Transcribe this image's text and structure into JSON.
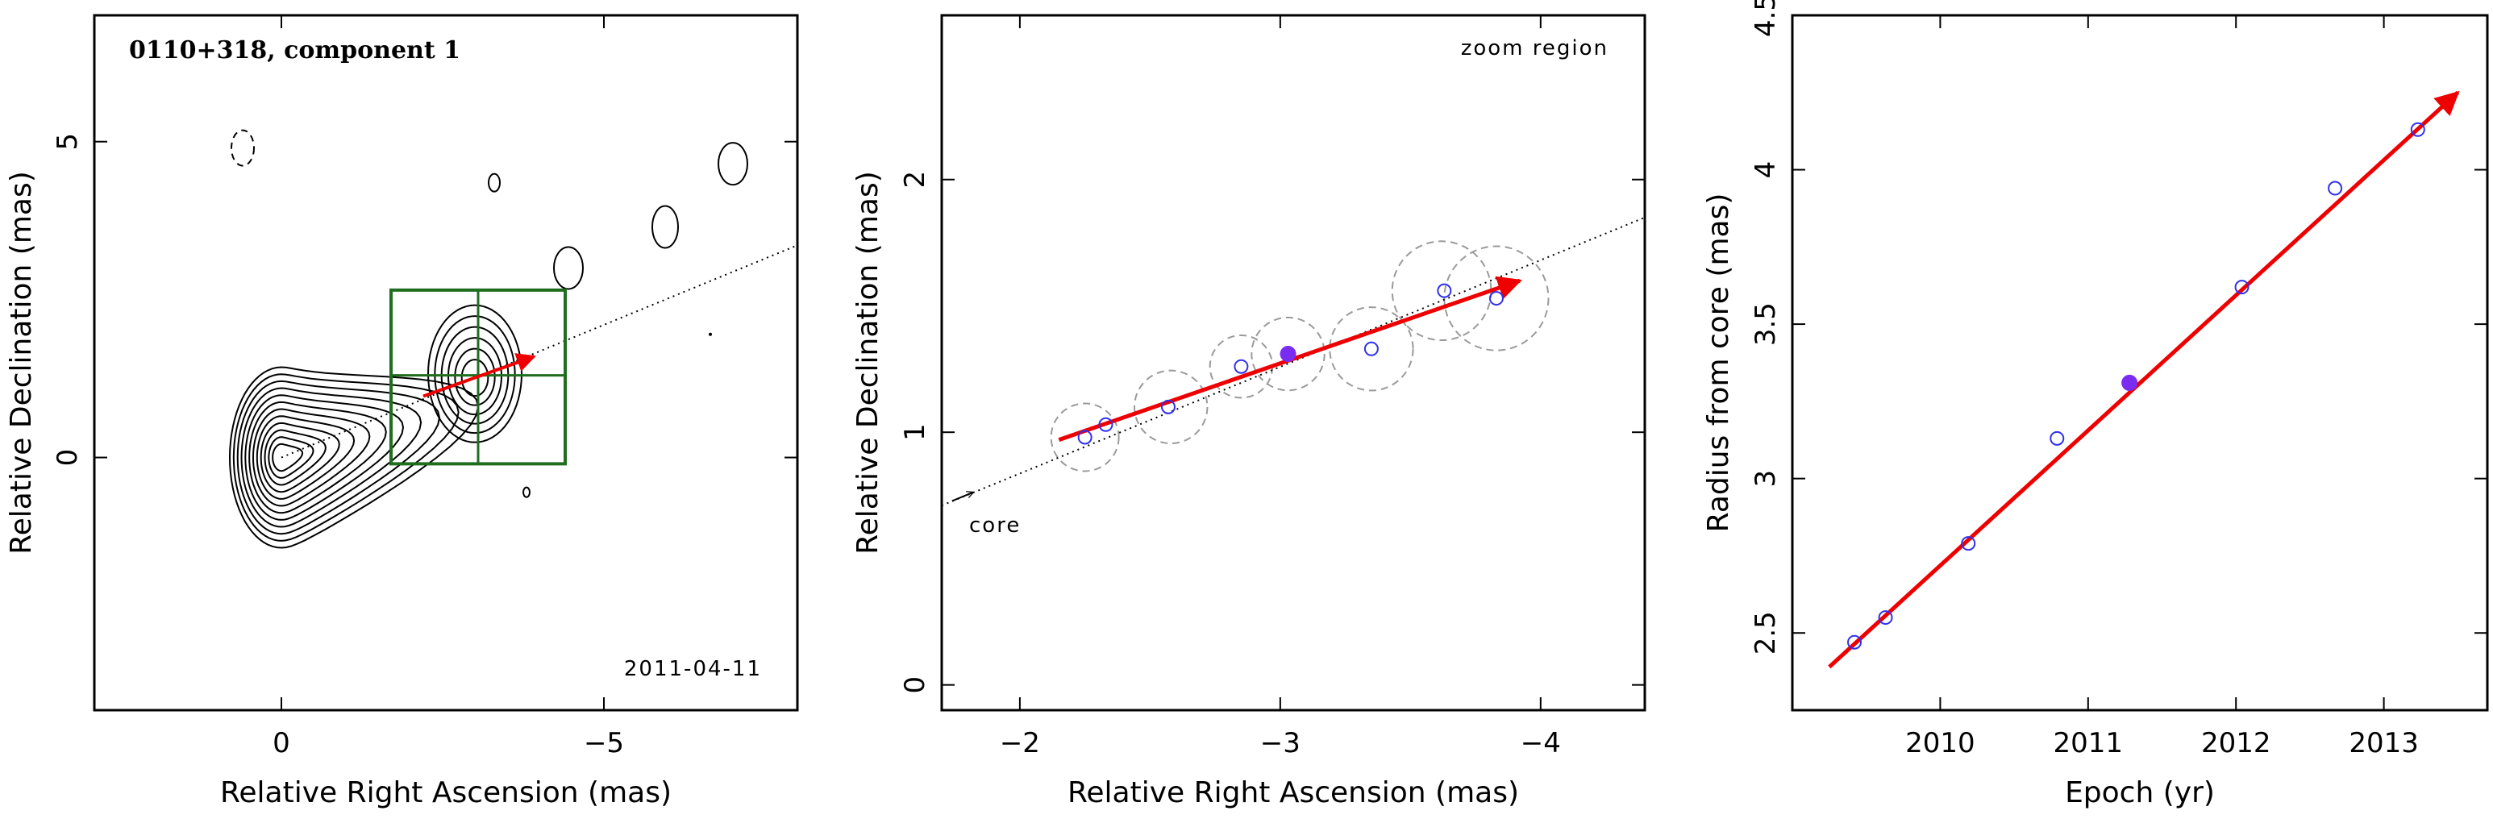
{
  "colors": {
    "arrow": "#ee0000",
    "highlight": "#7a2cf0",
    "points": "#3030ee",
    "box": "#1f6e1f",
    "circles": "#9a9a9a",
    "contour": "#000000"
  },
  "chart_data": [
    {
      "type": "contour",
      "title": "0110+318, component 1",
      "annotation": "2011-04-11",
      "xlabel": "Relative Right Ascension (mas)",
      "ylabel": "Relative Declination (mas)",
      "xlim": [
        2.9,
        -8.0
      ],
      "ylim": [
        -4.0,
        7.0
      ],
      "xticks": [
        {
          "v": 0,
          "label": "0"
        },
        {
          "v": -5,
          "label": "−5"
        }
      ],
      "yticks": [
        {
          "v": 0,
          "label": "0"
        },
        {
          "v": 5,
          "label": "5"
        }
      ],
      "core": [
        0,
        0
      ],
      "trajectory_line": {
        "x": [
          0,
          -8.0
        ],
        "y": [
          0,
          3.36
        ]
      },
      "arrow": {
        "from": [
          -2.2,
          0.97
        ],
        "to": [
          -3.92,
          1.6
        ]
      },
      "zoom_box": {
        "x": [
          -1.7,
          -4.4
        ],
        "y": [
          -0.1,
          2.65
        ],
        "crosshair": [
          -3.05,
          1.3
        ]
      },
      "component_position": [
        -3.05,
        1.3
      ]
    },
    {
      "type": "scatter",
      "annotation_top": "zoom region",
      "annotation_core": "core",
      "xlabel": "Relative Right Ascension (mas)",
      "ylabel": "Relative Declination (mas)",
      "xlim": [
        -1.7,
        -4.4
      ],
      "ylim": [
        -0.1,
        2.65
      ],
      "xticks": [
        {
          "v": -2,
          "label": "−2"
        },
        {
          "v": -3,
          "label": "−3"
        },
        {
          "v": -4,
          "label": "−4"
        }
      ],
      "yticks": [
        {
          "v": 0,
          "label": "0"
        },
        {
          "v": 1,
          "label": "1"
        },
        {
          "v": 2,
          "label": "2"
        }
      ],
      "points": [
        {
          "x": -2.25,
          "y": 0.98
        },
        {
          "x": -2.33,
          "y": 1.03
        },
        {
          "x": -2.57,
          "y": 1.1
        },
        {
          "x": -2.85,
          "y": 1.26
        },
        {
          "x": -3.35,
          "y": 1.33
        },
        {
          "x": -3.63,
          "y": 1.56
        },
        {
          "x": -3.83,
          "y": 1.53
        }
      ],
      "highlight_point": {
        "x": -3.03,
        "y": 1.31
      },
      "uncertainty_circles": [
        {
          "x": -2.25,
          "y": 0.98,
          "r": 0.13
        },
        {
          "x": -2.58,
          "y": 1.1,
          "r": 0.14
        },
        {
          "x": -2.85,
          "y": 1.26,
          "r": 0.12
        },
        {
          "x": -3.03,
          "y": 1.31,
          "r": 0.14
        },
        {
          "x": -3.35,
          "y": 1.33,
          "r": 0.16
        },
        {
          "x": -3.62,
          "y": 1.56,
          "r": 0.19
        },
        {
          "x": -3.83,
          "y": 1.53,
          "r": 0.2
        }
      ],
      "arrow": {
        "from": [
          -2.15,
          0.97
        ],
        "to": [
          -3.92,
          1.6
        ]
      },
      "trajectory_line": {
        "x": [
          -1.7,
          -4.4
        ],
        "y": [
          0.71,
          1.85
        ]
      }
    },
    {
      "type": "scatter",
      "xlabel": "Epoch (yr)",
      "ylabel": "Radius from core (mas)",
      "xlim": [
        2009.0,
        2013.7
      ],
      "ylim": [
        2.25,
        4.5
      ],
      "xticks": [
        {
          "v": 2010,
          "label": "2010"
        },
        {
          "v": 2011,
          "label": "2011"
        },
        {
          "v": 2012,
          "label": "2012"
        },
        {
          "v": 2013,
          "label": "2013"
        }
      ],
      "yticks": [
        {
          "v": 2.5,
          "label": "2.5"
        },
        {
          "v": 3,
          "label": "3"
        },
        {
          "v": 3.5,
          "label": "3.5"
        },
        {
          "v": 4,
          "label": "4"
        },
        {
          "v": 4.5,
          "label": "4.5"
        }
      ],
      "points": [
        {
          "x": 2009.42,
          "y": 2.47
        },
        {
          "x": 2009.63,
          "y": 2.55
        },
        {
          "x": 2010.19,
          "y": 2.79
        },
        {
          "x": 2010.79,
          "y": 3.13
        },
        {
          "x": 2012.04,
          "y": 3.62
        },
        {
          "x": 2012.67,
          "y": 3.94
        },
        {
          "x": 2013.23,
          "y": 4.13
        }
      ],
      "highlight_point": {
        "x": 2011.28,
        "y": 3.31
      },
      "fit_arrow": {
        "from": [
          2009.25,
          2.39
        ],
        "to": [
          2013.5,
          4.25
        ]
      }
    }
  ]
}
